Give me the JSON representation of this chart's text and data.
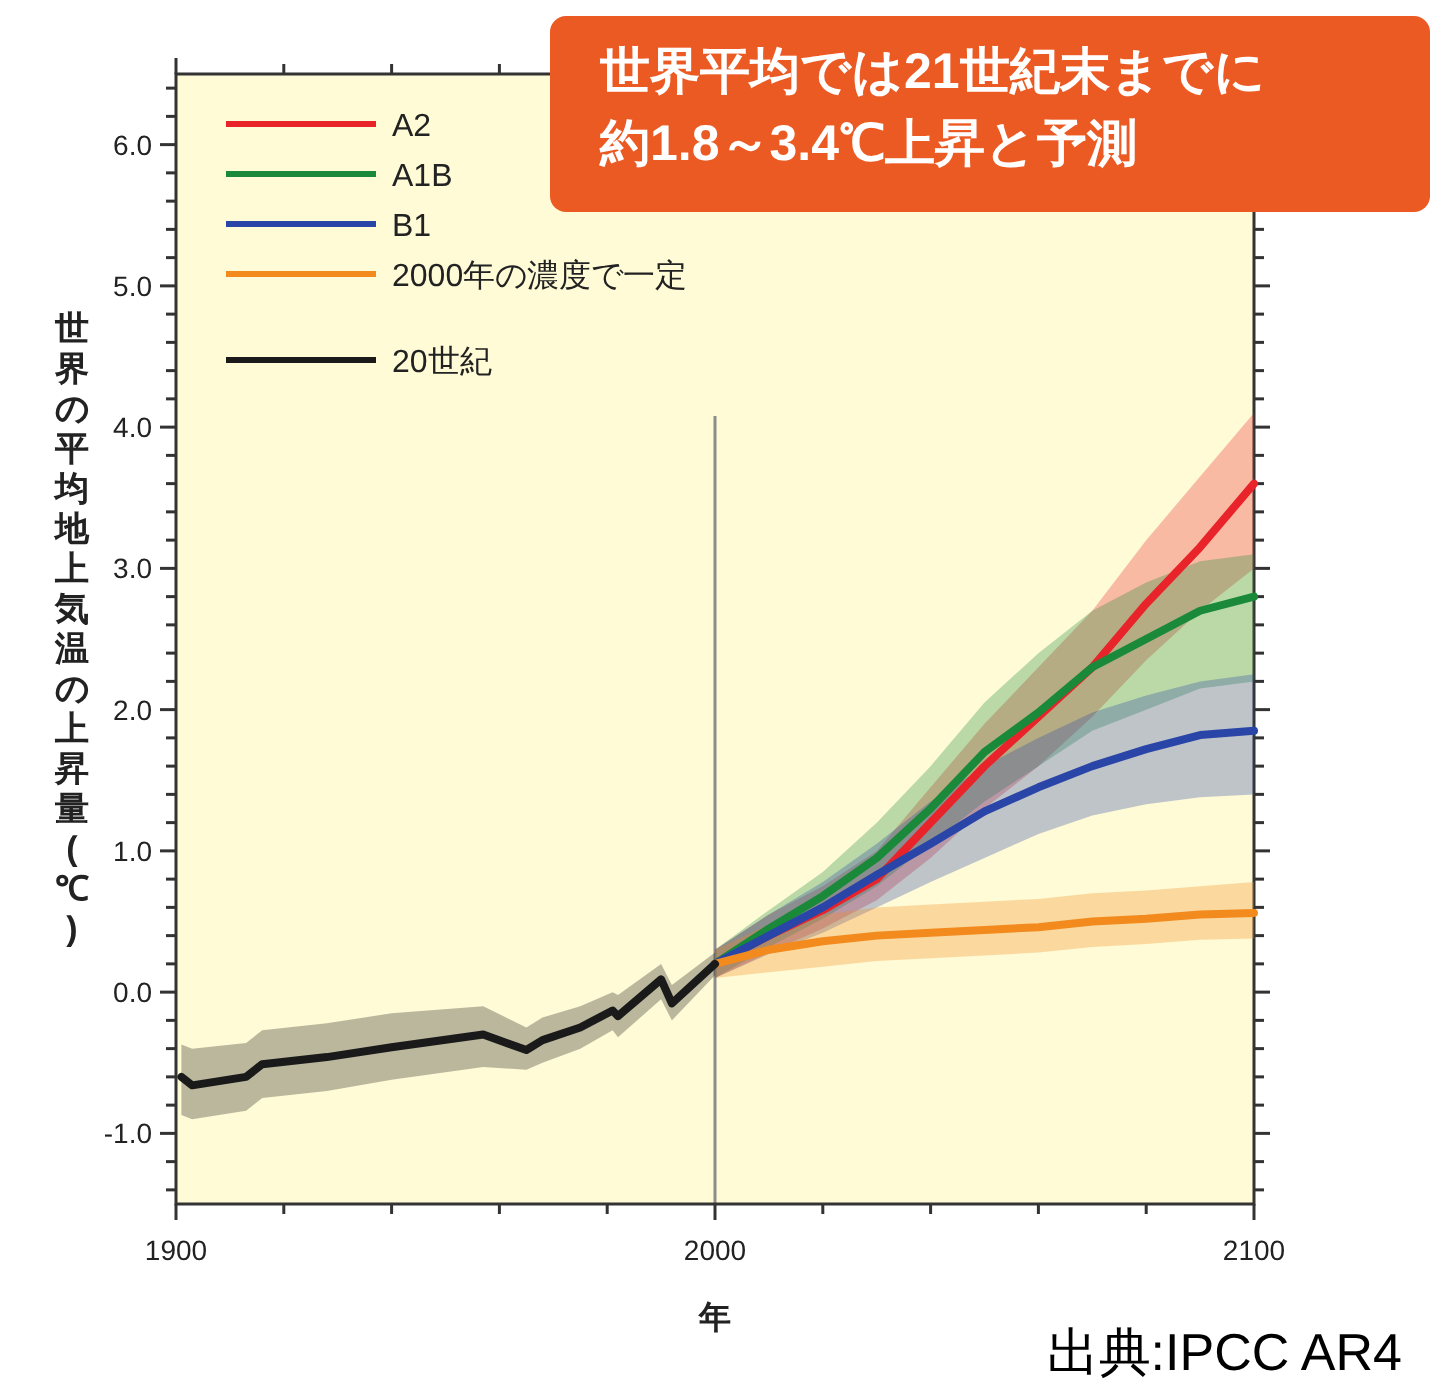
{
  "chart_data": {
    "type": "line",
    "xlabel": "年",
    "ylabel": "世界の平均地上気温の上昇量(℃)",
    "annotations": [
      "世界平均では21世紀末までに約1.8～3.4℃上昇と予測",
      "出典:IPCC AR4"
    ],
    "xlim": [
      1900,
      2100
    ],
    "xticks": [
      1900,
      {
        "value": 1920,
        "label": null
      },
      {
        "value": 1940,
        "label": null
      },
      {
        "value": 1960,
        "label": null
      },
      {
        "value": 1980,
        "label": null
      },
      2000,
      {
        "value": 2020,
        "label": null
      },
      {
        "value": 2040,
        "label": null
      },
      {
        "value": 2060,
        "label": null
      },
      {
        "value": 2080,
        "label": null
      },
      2100
    ],
    "ylim": [
      -1.5,
      6.5
    ],
    "yticks": [
      {
        "value": -1.4,
        "label": null
      },
      {
        "value": -1.2,
        "label": null
      },
      {
        "value": -1,
        "label": "-1.0"
      },
      {
        "value": -0.8,
        "label": null
      },
      {
        "value": -0.6,
        "label": null
      },
      {
        "value": -0.4,
        "label": null
      },
      {
        "value": -0.2,
        "label": null
      },
      {
        "value": 0,
        "label": "0.0"
      },
      {
        "value": 0.2,
        "label": null
      },
      {
        "value": 0.4,
        "label": null
      },
      {
        "value": 0.6,
        "label": null
      },
      {
        "value": 0.8,
        "label": null
      },
      {
        "value": 1,
        "label": "1.0"
      },
      {
        "value": 1.2,
        "label": null
      },
      {
        "value": 1.4,
        "label": null
      },
      {
        "value": 1.6,
        "label": null
      },
      {
        "value": 1.8,
        "label": null
      },
      {
        "value": 2,
        "label": "2.0"
      },
      {
        "value": 2.2,
        "label": null
      },
      {
        "value": 2.4,
        "label": null
      },
      {
        "value": 2.6,
        "label": null
      },
      {
        "value": 2.8,
        "label": null
      },
      {
        "value": 3,
        "label": "3.0"
      },
      {
        "value": 3.2,
        "label": null
      },
      {
        "value": 3.4,
        "label": null
      },
      {
        "value": 3.6,
        "label": null
      },
      {
        "value": 3.8,
        "label": null
      },
      {
        "value": 4,
        "label": "4.0"
      },
      {
        "value": 4.2,
        "label": null
      },
      {
        "value": 4.4,
        "label": null
      },
      {
        "value": 4.6,
        "label": null
      },
      {
        "value": 4.8,
        "label": null
      },
      {
        "value": 5,
        "label": "5.0"
      },
      {
        "value": 5.2,
        "label": null
      },
      {
        "value": 5.4,
        "label": null
      },
      {
        "value": 5.6,
        "label": null
      },
      {
        "value": 5.8,
        "label": null
      },
      {
        "value": 6,
        "label": "6.0"
      },
      {
        "value": 6.2,
        "label": null
      },
      {
        "value": 6.4,
        "label": null
      }
    ],
    "legend": "top left",
    "ref_lines": [
      {
        "axis": "x",
        "value": 2000,
        "color": "#8c8c8c"
      }
    ],
    "series": [
      {
        "name": "A2",
        "color": "#e8242a",
        "x": [
          2000,
          2010,
          2020,
          2030,
          2040,
          2050,
          2060,
          2070,
          2080,
          2090,
          2100
        ],
        "values": [
          0.2,
          0.4,
          0.58,
          0.8,
          1.2,
          1.6,
          1.95,
          2.3,
          2.75,
          3.15,
          3.6
        ],
        "upper": [
          0.3,
          0.55,
          0.75,
          1.0,
          1.45,
          1.9,
          2.3,
          2.7,
          3.2,
          3.65,
          4.1
        ],
        "lower": [
          0.1,
          0.28,
          0.45,
          0.65,
          0.95,
          1.3,
          1.6,
          1.95,
          2.35,
          2.7,
          3.0
        ]
      },
      {
        "name": "A1B",
        "color": "#1a8a3a",
        "x": [
          2000,
          2010,
          2020,
          2030,
          2040,
          2050,
          2060,
          2070,
          2080,
          2090,
          2100
        ],
        "values": [
          0.2,
          0.45,
          0.68,
          0.95,
          1.3,
          1.7,
          1.98,
          2.3,
          2.5,
          2.7,
          2.8
        ],
        "upper": [
          0.3,
          0.58,
          0.85,
          1.2,
          1.6,
          2.05,
          2.4,
          2.7,
          2.9,
          3.05,
          3.1
        ],
        "lower": [
          0.1,
          0.32,
          0.52,
          0.75,
          1.05,
          1.35,
          1.6,
          1.85,
          2.0,
          2.15,
          2.2
        ]
      },
      {
        "name": "B1",
        "color": "#2a45a8",
        "x": [
          2000,
          2010,
          2020,
          2030,
          2040,
          2050,
          2060,
          2070,
          2080,
          2090,
          2100
        ],
        "values": [
          0.2,
          0.4,
          0.6,
          0.83,
          1.05,
          1.28,
          1.45,
          1.6,
          1.72,
          1.82,
          1.85
        ],
        "upper": [
          0.3,
          0.55,
          0.78,
          1.05,
          1.35,
          1.6,
          1.8,
          1.98,
          2.1,
          2.2,
          2.25
        ],
        "lower": [
          0.1,
          0.27,
          0.42,
          0.6,
          0.78,
          0.95,
          1.12,
          1.25,
          1.33,
          1.38,
          1.4
        ]
      },
      {
        "name": "2000年の濃度で一定",
        "color": "#f28a1e",
        "x": [
          2000,
          2010,
          2020,
          2030,
          2040,
          2050,
          2060,
          2070,
          2080,
          2090,
          2100
        ],
        "values": [
          0.2,
          0.3,
          0.36,
          0.4,
          0.42,
          0.44,
          0.46,
          0.5,
          0.52,
          0.55,
          0.56
        ],
        "upper": [
          0.3,
          0.48,
          0.55,
          0.6,
          0.62,
          0.64,
          0.66,
          0.7,
          0.72,
          0.75,
          0.78
        ],
        "lower": [
          0.1,
          0.14,
          0.18,
          0.22,
          0.24,
          0.26,
          0.28,
          0.32,
          0.34,
          0.37,
          0.38
        ]
      },
      {
        "name": "20世紀",
        "color": "#1a1a1a",
        "x": [
          1901,
          1903,
          1913,
          1916,
          1928,
          1940,
          1957,
          1965,
          1968,
          1975,
          1981,
          1982,
          1990,
          1992,
          2000
        ],
        "values": [
          -0.6,
          -0.66,
          -0.6,
          -0.51,
          -0.46,
          -0.39,
          -0.3,
          -0.41,
          -0.34,
          -0.25,
          -0.13,
          -0.17,
          0.09,
          -0.08,
          0.2
        ],
        "upper": [
          -0.37,
          -0.4,
          -0.36,
          -0.27,
          -0.22,
          -0.15,
          -0.1,
          -0.25,
          -0.18,
          -0.1,
          0.0,
          -0.02,
          0.2,
          0.05,
          0.28
        ],
        "lower": [
          -0.87,
          -0.9,
          -0.84,
          -0.75,
          -0.7,
          -0.62,
          -0.53,
          -0.55,
          -0.5,
          -0.4,
          -0.27,
          -0.32,
          -0.05,
          -0.2,
          0.12
        ]
      }
    ]
  }
}
